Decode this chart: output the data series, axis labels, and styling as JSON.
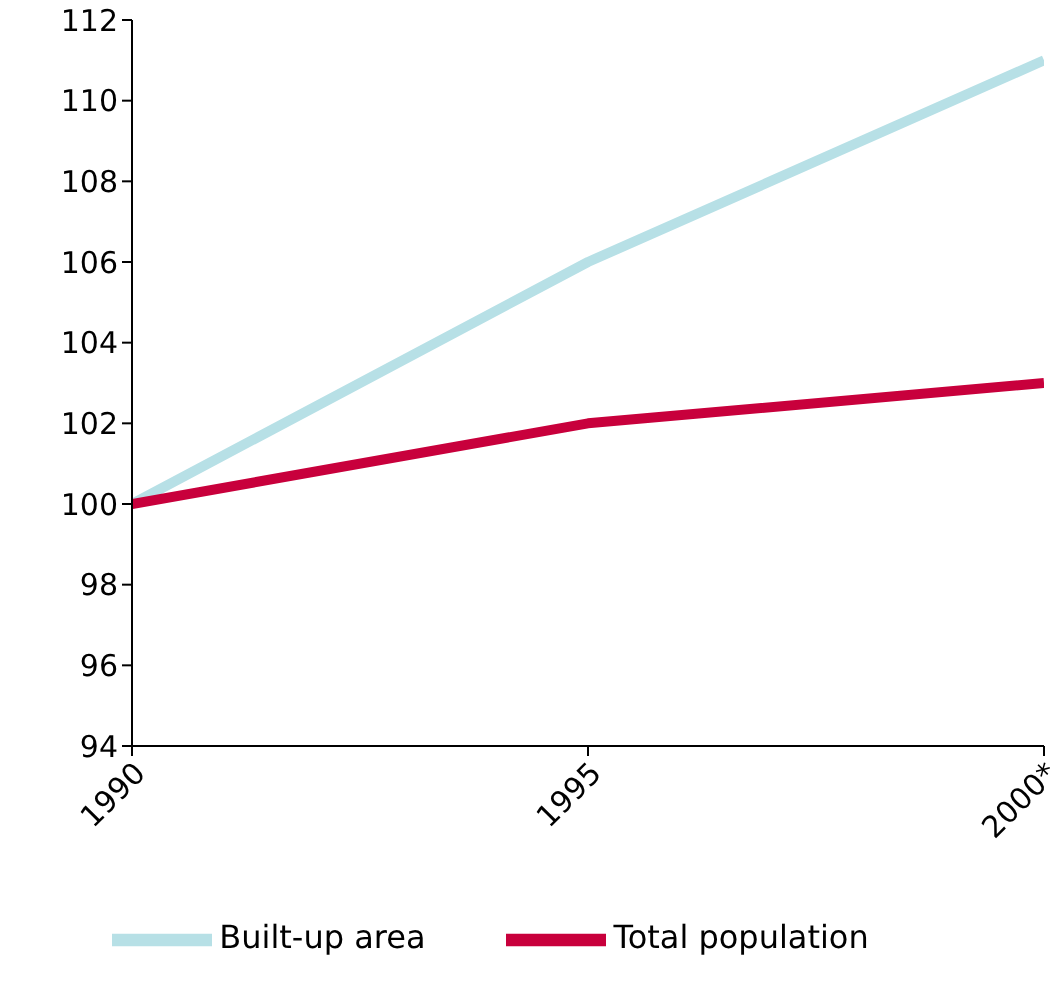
{
  "chart_data": {
    "type": "line",
    "categories": [
      "1990",
      "1995",
      "2000*"
    ],
    "series": [
      {
        "name": "Built-up area",
        "color": "#b7e0e6",
        "values": [
          100,
          106,
          111
        ]
      },
      {
        "name": "Total population",
        "color": "#c8003c",
        "values": [
          100,
          102,
          103
        ]
      }
    ],
    "ylim": [
      94,
      112
    ],
    "yticks": [
      94,
      96,
      98,
      100,
      102,
      104,
      106,
      108,
      110,
      112
    ],
    "grid": false,
    "legend": "bottom",
    "marker": "none",
    "line_style": "solid"
  }
}
